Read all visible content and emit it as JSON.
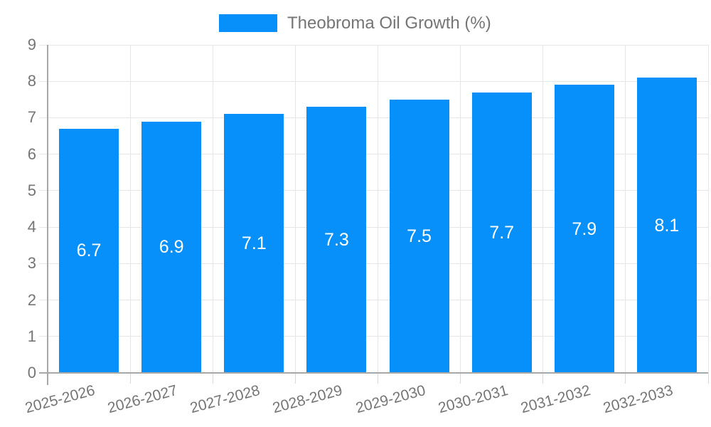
{
  "legend": {
    "label": "Theobroma Oil Growth (%)"
  },
  "colors": {
    "bar": "#0890FA",
    "grid": "#E6E6E6",
    "axis": "#A8A8A8",
    "tick": "#D9D9D9",
    "text": "#757575",
    "value_label_text": "#FFFFFF",
    "background": "#FFFFFF"
  },
  "chart_data": {
    "type": "bar",
    "title": "",
    "xlabel": "",
    "ylabel": "",
    "categories": [
      "2025-2026",
      "2026-2027",
      "2027-2028",
      "2028-2029",
      "2029-2030",
      "2030-2031",
      "2031-2032",
      "2032-2033"
    ],
    "series": [
      {
        "name": "Theobroma Oil Growth (%)",
        "values": [
          6.7,
          6.9,
          7.1,
          7.3,
          7.5,
          7.7,
          7.9,
          8.1
        ]
      }
    ],
    "value_labels": [
      "6.7",
      "6.9",
      "7.1",
      "7.3",
      "7.5",
      "7.7",
      "7.9",
      "8.1"
    ],
    "ylim": [
      0,
      9
    ],
    "yticks": [
      "0",
      "1",
      "2",
      "3",
      "4",
      "5",
      "6",
      "7",
      "8",
      "9"
    ],
    "grid": "both",
    "legend_position": "top",
    "x_label_rotation_deg": -15,
    "value_label_position": "inside-center"
  }
}
